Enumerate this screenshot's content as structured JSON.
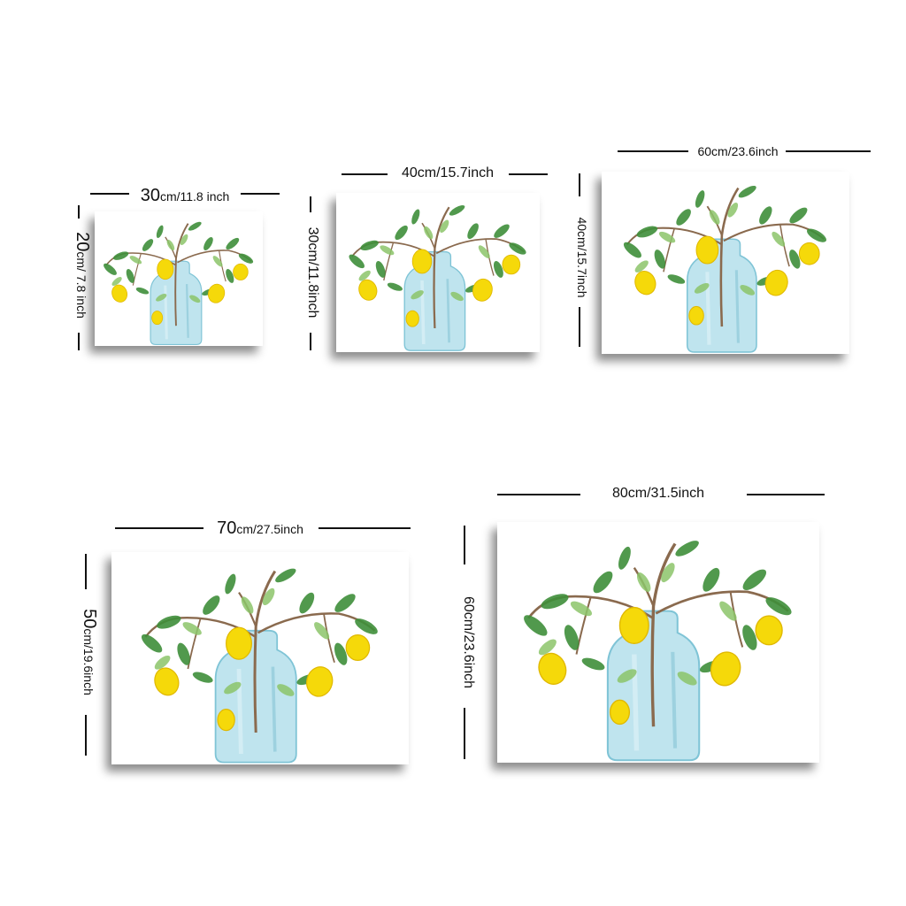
{
  "sizes": [
    {
      "width_label_big": "30",
      "width_label_small": "cm/11.8 inch",
      "height_label_big": "20",
      "height_label_small": "cm/ 7.8 inch"
    },
    {
      "width_label": "40cm/15.7inch",
      "height_label": "30cm/11.8inch"
    },
    {
      "width_label": "60cm/23.6inch",
      "height_label": "40cm/15.7inch"
    },
    {
      "width_label_big": "70",
      "width_label_small": "cm/27.5inch",
      "height_label_big": "50",
      "height_label_small": "cm/19.6inch"
    },
    {
      "width_label": "80cm/31.5inch",
      "height_label": "60cm/23.6inch"
    }
  ],
  "colors": {
    "leaf_dark": "#3f8f3a",
    "leaf_light": "#8cc56a",
    "lemon": "#f5d90a",
    "vase": "#9fd6e4",
    "branch": "#8a6a4e"
  }
}
